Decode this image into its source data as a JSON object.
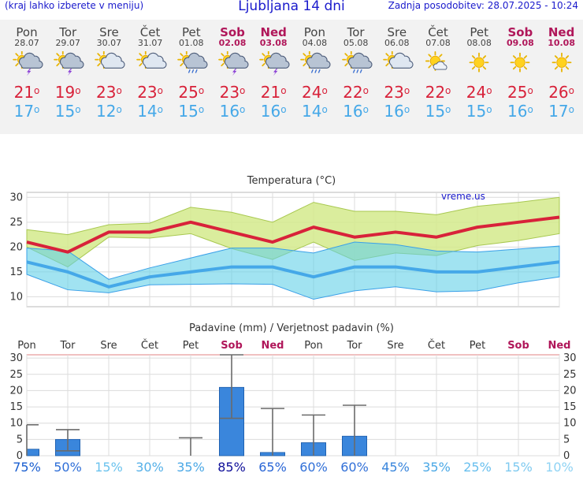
{
  "header": {
    "hint": "(kraj lahko izberete v meniju)",
    "title": "Ljubljana 14 dni",
    "updated": "Zadnja posodobitev: 28.07.2025 - 10:24"
  },
  "days": [
    {
      "name": "Pon",
      "date": "28.07",
      "weekend": false,
      "icon": "thunderstorm-sun-icon",
      "tmax": "21",
      "tmin": "17"
    },
    {
      "name": "Tor",
      "date": "29.07",
      "weekend": false,
      "icon": "thunderstorm-sun-icon",
      "tmax": "19",
      "tmin": "15"
    },
    {
      "name": "Sre",
      "date": "30.07",
      "weekend": false,
      "icon": "cloud-sun-icon",
      "tmax": "23",
      "tmin": "12"
    },
    {
      "name": "Čet",
      "date": "31.07",
      "weekend": false,
      "icon": "cloud-sun-icon",
      "tmax": "23",
      "tmin": "14"
    },
    {
      "name": "Pet",
      "date": "01.08",
      "weekend": false,
      "icon": "rain-sun-icon",
      "tmax": "25",
      "tmin": "15"
    },
    {
      "name": "Sob",
      "date": "02.08",
      "weekend": true,
      "icon": "thunderstorm-sun-icon",
      "tmax": "23",
      "tmin": "16"
    },
    {
      "name": "Ned",
      "date": "03.08",
      "weekend": true,
      "icon": "thunderstorm-sun-icon",
      "tmax": "21",
      "tmin": "16"
    },
    {
      "name": "Pon",
      "date": "04.08",
      "weekend": false,
      "icon": "rain-sun-icon",
      "tmax": "24",
      "tmin": "14"
    },
    {
      "name": "Tor",
      "date": "05.08",
      "weekend": false,
      "icon": "rain-sun-icon",
      "tmax": "22",
      "tmin": "16"
    },
    {
      "name": "Sre",
      "date": "06.08",
      "weekend": false,
      "icon": "cloud-sun-icon",
      "tmax": "23",
      "tmin": "16"
    },
    {
      "name": "Čet",
      "date": "07.08",
      "weekend": false,
      "icon": "partly-sunny-icon",
      "tmax": "22",
      "tmin": "15"
    },
    {
      "name": "Pet",
      "date": "08.08",
      "weekend": false,
      "icon": "sun-icon",
      "tmax": "24",
      "tmin": "15"
    },
    {
      "name": "Sob",
      "date": "09.08",
      "weekend": true,
      "icon": "sun-icon",
      "tmax": "25",
      "tmin": "16"
    },
    {
      "name": "Ned",
      "date": "10.08",
      "weekend": true,
      "icon": "sun-icon",
      "tmax": "26",
      "tmin": "17"
    }
  ],
  "degree_symbol": "o",
  "colors": {
    "tmax": "#d8223a",
    "tmin": "#45a8e8",
    "weekend": "#b0175a",
    "header_text": "#1a1acc",
    "precip_bar": "#3a86dc"
  },
  "chart_data": [
    {
      "type": "line",
      "title": "Temperatura (°C)",
      "watermark": "vreme.us",
      "ylim": [
        8,
        31
      ],
      "yticks": [
        10,
        15,
        20,
        25,
        30
      ],
      "grid": true,
      "categories": [
        "Pon",
        "Tor",
        "Sre",
        "Čet",
        "Pet",
        "Sob",
        "Ned",
        "Pon",
        "Tor",
        "Sre",
        "Čet",
        "Pet",
        "Sob",
        "Ned"
      ],
      "series": [
        {
          "values": [
            21,
            19,
            23,
            23,
            25,
            23,
            21,
            24,
            22,
            23,
            22,
            24,
            25,
            26
          ]
        },
        {
          "values": [
            17,
            15,
            12,
            14,
            15,
            16,
            16,
            14,
            16,
            16,
            15,
            15,
            16,
            17
          ]
        }
      ],
      "bands": [
        {
          "upper": [
            23.5,
            22.5,
            24.5,
            24.8,
            28,
            27,
            25,
            29,
            27.2,
            27.2,
            26.5,
            28.2,
            29,
            30
          ],
          "lower": [
            20,
            16,
            22,
            21.8,
            22.7,
            19.7,
            17.5,
            21,
            17.3,
            18.8,
            18.3,
            20.3,
            21.3,
            22.7
          ]
        },
        {
          "upper": [
            19.8,
            19.2,
            13.5,
            15.8,
            17.8,
            19.8,
            19.8,
            18.8,
            21,
            20.5,
            19.2,
            19,
            19.6,
            20.2
          ],
          "lower": [
            14.5,
            11.4,
            10.8,
            12.4,
            12.5,
            12.6,
            12.5,
            9.5,
            11.2,
            12,
            11,
            11.2,
            12.8,
            14
          ]
        }
      ]
    },
    {
      "type": "bar",
      "title": "Padavine (mm) / Verjetnost padavin (%)",
      "ylim": [
        0,
        31
      ],
      "yticks": [
        0,
        5,
        10,
        15,
        20,
        25,
        30
      ],
      "categories": [
        "Pon",
        "Tor",
        "Sre",
        "Čet",
        "Pet",
        "Sob",
        "Ned",
        "Pon",
        "Tor",
        "Sre",
        "Čet",
        "Pet",
        "Sob",
        "Ned"
      ],
      "values": [
        2,
        5,
        0,
        0,
        0,
        21,
        1,
        4,
        6,
        0,
        0,
        0,
        0,
        0
      ],
      "error_range": [
        [
          0,
          9.5
        ],
        [
          1.5,
          8
        ],
        null,
        null,
        [
          0,
          5.5
        ],
        [
          11.5,
          31
        ],
        [
          0,
          14.5
        ],
        [
          0,
          12.5
        ],
        [
          0,
          15.5
        ],
        null,
        null,
        null,
        null,
        null
      ],
      "probability": [
        "75%",
        "50%",
        "15%",
        "30%",
        "35%",
        "85%",
        "65%",
        "60%",
        "60%",
        "45%",
        "35%",
        "25%",
        "15%",
        "10%"
      ],
      "probability_colors": [
        "#1b5fd0",
        "#2f6fd8",
        "#6cc3ee",
        "#55b0e8",
        "#4ba8e6",
        "#10109a",
        "#2a66d6",
        "#3170d8",
        "#3170d8",
        "#3a86dc",
        "#4ba8e6",
        "#68bfee",
        "#7fcaf0",
        "#8fd3f4"
      ]
    }
  ]
}
